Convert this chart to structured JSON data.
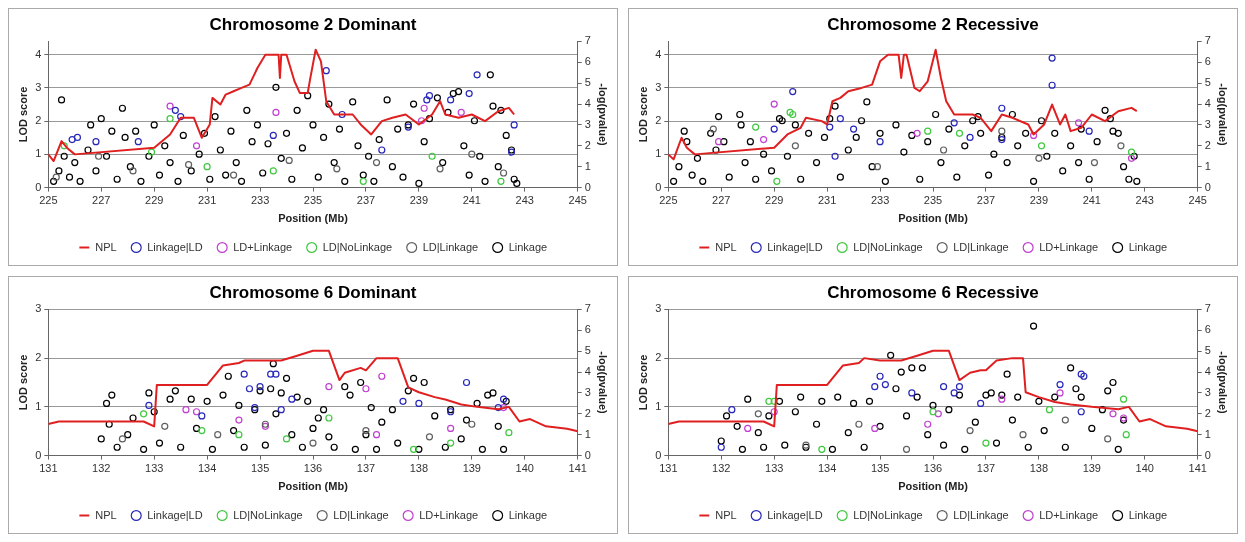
{
  "chart_data": [
    {
      "type": "scatter",
      "title": "Chromosome 2 Dominant",
      "xlabel": "Position (Mb)",
      "ylabel": "LOD score",
      "y2label": "-log(pvalue)",
      "xlim": [
        225,
        245
      ],
      "xticks": [
        225,
        227,
        229,
        231,
        233,
        235,
        237,
        239,
        241,
        243,
        245
      ],
      "ylim": [
        0,
        4.4
      ],
      "yticks": [
        0,
        1,
        2,
        3,
        4
      ],
      "y2lim": [
        0,
        7
      ],
      "y2ticks": [
        0,
        1,
        2,
        3,
        4,
        5,
        6,
        7
      ],
      "grid": "y",
      "legend": "bottom",
      "marker": "circle",
      "series": [
        {
          "name": "NPL",
          "type": "line",
          "marker": "none",
          "color": "#e02020",
          "x": [
            225,
            225.2,
            225.5,
            225.7,
            226,
            229,
            229.6,
            230,
            230.5,
            230.8,
            231.1,
            231.2,
            231.5,
            231.7,
            232,
            232.3,
            232.6,
            232.9,
            233.2,
            233.7,
            233.75,
            233.8,
            234,
            234.3,
            234.5,
            234.8,
            234.9,
            235.1,
            235.3,
            235.5,
            235.8,
            236.5,
            236.8,
            237.2,
            237.6,
            238,
            238.5,
            239,
            239.5,
            239.8,
            240,
            240.5,
            241,
            241.5,
            242,
            242.4,
            242.6
          ],
          "values": [
            1.0,
            0.8,
            1.4,
            1.2,
            1.0,
            1.2,
            1.6,
            2.1,
            2.1,
            1.5,
            1.9,
            2.7,
            2.5,
            2.8,
            2.9,
            3.0,
            3.1,
            3.6,
            4.0,
            4.0,
            3.3,
            4.0,
            4.0,
            3.2,
            2.85,
            2.85,
            3.3,
            4.15,
            3.8,
            2.6,
            2.2,
            2.2,
            1.9,
            1.6,
            2.0,
            2.1,
            2.2,
            1.9,
            2.2,
            2.6,
            2.2,
            2.1,
            2.2,
            2.0,
            2.3,
            2.4,
            2.2
          ]
        },
        {
          "name": "Linkage|LD",
          "axis": "y2",
          "color": "#2828b8",
          "x": [
            225.9,
            226.1,
            226.8,
            228.4,
            229.8,
            230.0,
            233.5,
            235.5,
            236.1,
            237.6,
            238.6,
            239.3,
            239.4,
            240.2,
            240.9,
            241.2,
            242.6,
            242.5
          ],
          "values": [
            2.3,
            2.4,
            2.2,
            2.2,
            3.7,
            3.4,
            2.5,
            5.6,
            3.5,
            1.8,
            2.9,
            4.2,
            4.4,
            4.2,
            4.5,
            5.4,
            3.0,
            1.7
          ]
        },
        {
          "name": "LD+Linkage",
          "axis": "y2",
          "color": "#c040d0",
          "x": [
            229.6,
            233.6,
            239.1,
            239.2,
            240.6,
            230.6
          ],
          "values": [
            3.9,
            3.6,
            3.2,
            3.8,
            3.6,
            2.0
          ]
        },
        {
          "name": "LD|NoLinkage",
          "axis": "y2",
          "color": "#40c840",
          "x": [
            225.6,
            228.9,
            229.6,
            231.0,
            236.9,
            239.5,
            242.1,
            233.5
          ],
          "values": [
            2.0,
            1.7,
            3.3,
            1.0,
            0.3,
            1.5,
            0.3,
            0.8
          ]
        },
        {
          "name": "LD|Linkage",
          "axis": "y2",
          "color": "#606060",
          "x": [
            225.3,
            226.9,
            228.2,
            230.3,
            232.0,
            234.1,
            235.9,
            237.4,
            239.8,
            241.0,
            242.2
          ],
          "values": [
            0.5,
            1.5,
            0.8,
            1.1,
            0.6,
            1.3,
            0.9,
            1.2,
            0.9,
            1.6,
            0.7
          ]
        },
        {
          "name": "Linkage",
          "axis": "y2",
          "color": "#000000",
          "x": [
            225.2,
            225.4,
            225.5,
            225.6,
            225.8,
            226.0,
            226.2,
            226.5,
            226.6,
            226.8,
            227.0,
            227.2,
            227.4,
            227.6,
            227.8,
            227.9,
            228.1,
            228.3,
            228.5,
            228.8,
            229.0,
            229.2,
            229.4,
            229.6,
            229.9,
            230.1,
            230.4,
            230.7,
            230.9,
            231.1,
            231.3,
            231.5,
            231.7,
            231.9,
            232.1,
            232.3,
            232.5,
            232.7,
            232.9,
            233.1,
            233.3,
            233.6,
            233.8,
            234.0,
            234.2,
            234.4,
            234.6,
            234.8,
            235.0,
            235.2,
            235.4,
            235.6,
            235.8,
            236.0,
            236.2,
            236.5,
            236.7,
            236.9,
            237.1,
            237.3,
            237.5,
            237.8,
            238.0,
            238.2,
            238.4,
            238.6,
            238.8,
            239.0,
            239.2,
            239.4,
            239.7,
            239.9,
            240.1,
            240.3,
            240.5,
            240.7,
            240.9,
            241.1,
            241.3,
            241.5,
            241.7,
            241.8,
            242.0,
            242.1,
            242.3,
            242.5,
            242.6,
            242.7
          ],
          "values": [
            0.3,
            0.8,
            4.2,
            1.5,
            0.5,
            1.2,
            0.3,
            1.8,
            3.0,
            0.8,
            3.3,
            1.5,
            2.7,
            0.4,
            3.8,
            2.4,
            1.0,
            2.7,
            0.3,
            1.5,
            3.0,
            0.6,
            2.0,
            1.2,
            0.3,
            2.5,
            0.8,
            1.6,
            2.6,
            0.4,
            3.4,
            1.8,
            0.6,
            2.7,
            1.2,
            0.3,
            3.7,
            2.2,
            3.0,
            0.7,
            2.1,
            4.8,
            1.4,
            2.6,
            0.4,
            3.7,
            1.9,
            4.4,
            3.0,
            0.5,
            2.4,
            4.0,
            1.2,
            2.8,
            0.3,
            4.1,
            2.0,
            0.6,
            1.5,
            0.3,
            2.3,
            4.2,
            1.0,
            2.8,
            0.5,
            3.0,
            4.0,
            0.2,
            2.2,
            3.3,
            4.3,
            1.2,
            3.6,
            4.5,
            4.6,
            2.0,
            0.6,
            3.2,
            1.5,
            0.3,
            5.4,
            3.9,
            1.0,
            3.7,
            2.5,
            1.8,
            0.4,
            0.2
          ]
        }
      ]
    },
    {
      "type": "scatter",
      "title": "Chromosome 2 Recessive",
      "xlabel": "Position (Mb)",
      "ylabel": "LOD score",
      "y2label": "-log(pvalue)",
      "xlim": [
        225,
        245
      ],
      "xticks": [
        225,
        227,
        229,
        231,
        233,
        235,
        237,
        239,
        241,
        243,
        245
      ],
      "ylim": [
        0,
        4.4
      ],
      "yticks": [
        0,
        1,
        2,
        3,
        4
      ],
      "y2lim": [
        0,
        7
      ],
      "y2ticks": [
        0,
        1,
        2,
        3,
        4,
        5,
        6,
        7
      ],
      "grid": "y",
      "legend": "bottom",
      "marker": "circle",
      "series": [
        {
          "name": "NPL",
          "type": "line",
          "marker": "none",
          "color": "#e02020",
          "x": [
            225,
            225.2,
            225.5,
            225.7,
            226,
            229,
            229.5,
            230,
            230.2,
            230.8,
            231,
            231.2,
            231.5,
            231.8,
            232.3,
            232.7,
            233,
            233.3,
            233.7,
            233.8,
            233.9,
            234,
            234.3,
            234.5,
            234.8,
            235.1,
            235.3,
            235.5,
            235.8,
            236.5,
            236.8,
            237.2,
            237.6,
            238,
            238.6,
            238.8,
            239.2,
            239.5,
            239.8,
            240,
            240.2,
            240.6,
            241,
            241.5,
            242,
            242.5,
            242.7
          ],
          "values": [
            1.0,
            0.85,
            1.5,
            1.2,
            1.0,
            1.2,
            1.6,
            1.8,
            2.1,
            2.0,
            1.9,
            2.6,
            2.7,
            2.9,
            3.0,
            3.1,
            3.8,
            4.0,
            4.0,
            3.3,
            4.0,
            4.0,
            3.0,
            2.9,
            3.2,
            4.15,
            3.3,
            2.6,
            2.2,
            2.2,
            2.1,
            1.7,
            2.2,
            2.1,
            1.9,
            1.6,
            1.9,
            2.5,
            1.9,
            2.2,
            1.7,
            1.8,
            2.2,
            2.0,
            2.3,
            2.4,
            2.3
          ]
        },
        {
          "name": "Linkage|LD",
          "axis": "y2",
          "color": "#2828b8",
          "x": [
            229.0,
            229.7,
            231.1,
            231.5,
            232.0,
            233.0,
            235.8,
            236.4,
            237.6,
            237.6,
            239.5,
            239.5,
            240.9,
            231.3
          ],
          "values": [
            2.8,
            4.6,
            2.9,
            3.3,
            2.8,
            2.2,
            3.1,
            2.4,
            3.8,
            2.3,
            6.2,
            4.9,
            2.7,
            1.5
          ]
        },
        {
          "name": "LD|NoLinkage",
          "axis": "y2",
          "color": "#40c840",
          "x": [
            228.3,
            229.6,
            229.7,
            229.1,
            234.8,
            236.0,
            239.1,
            242.5
          ],
          "values": [
            2.9,
            3.6,
            3.5,
            0.3,
            2.7,
            2.6,
            2.0,
            1.7
          ]
        },
        {
          "name": "LD|Linkage",
          "axis": "y2",
          "color": "#606060",
          "x": [
            226.7,
            229.8,
            232.9,
            235.4,
            237.6,
            239.0,
            241.1,
            242.1
          ],
          "values": [
            2.8,
            2.0,
            1.0,
            1.8,
            2.7,
            1.4,
            1.2,
            2.0
          ]
        },
        {
          "name": "LD+Linkage",
          "axis": "y2",
          "color": "#c040d0",
          "x": [
            229.0,
            226.9,
            228.6,
            234.4,
            238.8,
            240.5,
            242.5
          ],
          "values": [
            4.0,
            2.2,
            2.3,
            2.6,
            2.5,
            3.1,
            1.4
          ]
        },
        {
          "name": "Linkage",
          "axis": "y2",
          "color": "#000000",
          "x": [
            225.2,
            225.4,
            225.6,
            225.7,
            225.9,
            226.1,
            226.3,
            226.6,
            226.8,
            226.9,
            227.1,
            227.3,
            227.7,
            227.75,
            227.9,
            228.1,
            228.3,
            228.6,
            228.9,
            229.2,
            229.3,
            229.5,
            229.8,
            230.0,
            230.3,
            230.6,
            230.9,
            231.1,
            231.3,
            231.5,
            231.8,
            232.1,
            232.3,
            232.5,
            232.7,
            233.0,
            233.2,
            233.6,
            233.9,
            234.2,
            234.5,
            234.8,
            235.1,
            235.3,
            235.6,
            235.9,
            236.2,
            236.5,
            236.7,
            236.8,
            237.1,
            237.3,
            237.6,
            237.8,
            238.0,
            238.2,
            238.5,
            238.8,
            239.1,
            239.3,
            239.6,
            239.9,
            240.2,
            240.5,
            240.6,
            240.9,
            241.2,
            241.5,
            241.7,
            241.8,
            242.0,
            242.2,
            242.4,
            242.6,
            242.7
          ],
          "values": [
            0.3,
            1.0,
            2.7,
            2.2,
            0.6,
            1.4,
            0.3,
            2.6,
            1.8,
            3.4,
            2.2,
            0.5,
            3.5,
            3.0,
            1.2,
            2.2,
            0.4,
            1.6,
            0.8,
            3.3,
            3.2,
            1.5,
            3.0,
            0.4,
            2.6,
            1.2,
            2.4,
            3.3,
            3.9,
            0.5,
            1.8,
            2.4,
            3.2,
            4.1,
            1.0,
            2.6,
            0.3,
            3.0,
            1.7,
            2.5,
            0.4,
            2.2,
            3.5,
            1.2,
            2.8,
            0.5,
            2.0,
            3.2,
            3.4,
            2.6,
            0.6,
            1.6,
            2.4,
            1.2,
            3.5,
            2.0,
            2.6,
            0.3,
            3.2,
            1.5,
            2.6,
            0.8,
            2.0,
            1.2,
            2.8,
            0.4,
            2.2,
            3.7,
            3.3,
            2.7,
            2.6,
            1.0,
            0.4,
            1.5,
            0.3
          ]
        }
      ]
    },
    {
      "type": "scatter",
      "title": "Chromosome 6 Dominant",
      "xlabel": "Position (Mb)",
      "ylabel": "LOD score",
      "y2label": "-log(pvalue)",
      "xlim": [
        131,
        141
      ],
      "xticks": [
        131,
        132,
        133,
        134,
        135,
        136,
        137,
        138,
        139,
        140,
        141
      ],
      "ylim": [
        0,
        3
      ],
      "yticks": [
        0,
        1,
        2,
        3
      ],
      "y2lim": [
        0,
        7
      ],
      "y2ticks": [
        0,
        1,
        2,
        3,
        4,
        5,
        6,
        7
      ],
      "grid": "y",
      "legend": "bottom",
      "marker": "circle",
      "series": [
        {
          "name": "NPL",
          "type": "line",
          "marker": "none",
          "color": "#e02020",
          "x": [
            131,
            131.2,
            132.8,
            133,
            133.05,
            134,
            134.3,
            134.6,
            134.7,
            135,
            135.4,
            135.7,
            136,
            136.3,
            136.5,
            136.6,
            136.9,
            137,
            137.2,
            137.6,
            137.8,
            138,
            138.3,
            138.5,
            138.8,
            139.1,
            139.5,
            139.7,
            139.9,
            140.1,
            140.4,
            140.8,
            141
          ],
          "values": [
            0.65,
            0.7,
            0.7,
            0.6,
            1.45,
            1.45,
            1.85,
            1.9,
            1.95,
            1.95,
            1.95,
            2.05,
            2.15,
            2.15,
            1.55,
            1.7,
            1.8,
            1.75,
            2.0,
            2.0,
            1.4,
            1.3,
            1.2,
            1.15,
            1.05,
            1.0,
            0.95,
            1.0,
            0.7,
            0.75,
            0.6,
            0.55,
            0.5
          ]
        },
        {
          "name": "Linkage|LD",
          "axis": "y2",
          "color": "#2828b8",
          "x": [
            132.9,
            133.9,
            134.7,
            134.8,
            134.9,
            135.0,
            135.2,
            135.3,
            135.4,
            135.6,
            137.7,
            138.0,
            138.6,
            138.9,
            139.6,
            139.5
          ],
          "values": [
            2.4,
            1.9,
            3.9,
            3.2,
            2.3,
            3.3,
            3.9,
            3.9,
            2.2,
            2.7,
            2.6,
            2.5,
            2.1,
            3.5,
            2.7,
            2.3
          ]
        },
        {
          "name": "LD|NoLinkage",
          "axis": "y2",
          "color": "#40c840",
          "x": [
            132.8,
            133.9,
            134.6,
            135.5,
            136.3,
            137.9,
            139.7,
            138.6
          ],
          "values": [
            2.0,
            1.2,
            1.0,
            0.8,
            1.8,
            0.3,
            1.1,
            0.6
          ]
        },
        {
          "name": "LD|Linkage",
          "axis": "y2",
          "color": "#606060",
          "x": [
            132.4,
            133.2,
            134.2,
            135.1,
            136.0,
            137.0,
            138.2,
            139.0
          ],
          "values": [
            0.8,
            1.4,
            1.0,
            1.5,
            0.6,
            1.2,
            0.9,
            1.5
          ]
        },
        {
          "name": "LD+Linkage",
          "axis": "y2",
          "color": "#c040d0",
          "x": [
            133.6,
            133.8,
            134.6,
            135.1,
            136.3,
            137.0,
            137.3,
            137.2,
            138.6,
            139.6
          ],
          "values": [
            2.2,
            2.1,
            1.7,
            1.4,
            3.3,
            3.2,
            3.8,
            1.0,
            1.3,
            2.3
          ]
        },
        {
          "name": "Linkage",
          "axis": "y2",
          "color": "#000000",
          "x": [
            132.0,
            132.1,
            132.15,
            132.2,
            132.3,
            132.5,
            132.6,
            132.8,
            132.9,
            133.0,
            133.1,
            133.3,
            133.4,
            133.5,
            133.7,
            133.8,
            134.0,
            134.1,
            134.3,
            134.4,
            134.5,
            134.6,
            134.7,
            134.9,
            135.0,
            135.1,
            135.2,
            135.25,
            135.3,
            135.4,
            135.5,
            135.6,
            135.7,
            135.8,
            135.9,
            136.0,
            136.1,
            136.2,
            136.3,
            136.4,
            136.6,
            136.7,
            136.8,
            136.9,
            137.0,
            137.1,
            137.2,
            137.3,
            137.5,
            137.6,
            137.8,
            137.9,
            138.0,
            138.1,
            138.3,
            138.5,
            138.6,
            138.8,
            138.9,
            139.1,
            139.2,
            139.3,
            139.4,
            139.5,
            139.6,
            139.65
          ],
          "values": [
            0.8,
            2.5,
            1.5,
            2.9,
            0.4,
            1.0,
            1.8,
            0.3,
            3.0,
            2.1,
            0.6,
            2.7,
            3.1,
            0.4,
            2.7,
            1.3,
            2.6,
            0.3,
            2.9,
            3.8,
            1.2,
            2.4,
            0.4,
            2.2,
            3.1,
            0.5,
            3.2,
            4.4,
            2.0,
            3.0,
            3.7,
            1.0,
            2.8,
            0.4,
            2.6,
            1.3,
            1.8,
            2.2,
            0.9,
            0.4,
            3.3,
            2.9,
            0.3,
            3.5,
            1.0,
            2.3,
            0.3,
            1.6,
            2.2,
            0.6,
            3.1,
            3.7,
            0.3,
            3.5,
            1.9,
            0.4,
            2.2,
            0.8,
            1.7,
            2.5,
            0.3,
            2.9,
            3.0,
            1.4,
            0.3,
            2.6
          ]
        }
      ]
    },
    {
      "type": "scatter",
      "title": "Chromosome 6 Recessive",
      "xlabel": "Position (Mb)",
      "ylabel": "LOD score",
      "y2label": "-log(pvalue)",
      "xlim": [
        131,
        141
      ],
      "xticks": [
        131,
        132,
        133,
        134,
        135,
        136,
        137,
        138,
        139,
        140,
        141
      ],
      "ylim": [
        0,
        3
      ],
      "yticks": [
        0,
        1,
        2,
        3
      ],
      "y2lim": [
        0,
        7
      ],
      "y2ticks": [
        0,
        1,
        2,
        3,
        4,
        5,
        6,
        7
      ],
      "grid": "y",
      "legend": "bottom",
      "marker": "circle",
      "series": [
        {
          "name": "NPL",
          "type": "line",
          "marker": "none",
          "color": "#e02020",
          "x": [
            131,
            131.2,
            132.8,
            133,
            133.05,
            134,
            134.3,
            134.6,
            134.7,
            135,
            135.4,
            135.7,
            136,
            136.3,
            136.5,
            136.7,
            136.9,
            137,
            137.2,
            137.5,
            137.7,
            137.75,
            138,
            138.3,
            138.6,
            139,
            139.5,
            139.7,
            139.9,
            140.1,
            140.4,
            140.8,
            141
          ],
          "values": [
            0.65,
            0.7,
            0.7,
            0.6,
            1.45,
            1.45,
            1.85,
            1.9,
            2.0,
            1.95,
            1.95,
            2.05,
            2.15,
            2.15,
            1.55,
            1.7,
            1.75,
            1.75,
            1.95,
            2.0,
            2.0,
            1.3,
            1.2,
            1.1,
            1.05,
            1.0,
            0.95,
            1.0,
            0.7,
            0.75,
            0.6,
            0.55,
            0.5
          ]
        },
        {
          "name": "Linkage|LD",
          "axis": "y2",
          "color": "#2828b8",
          "x": [
            132.0,
            132.2,
            134.9,
            135.0,
            135.1,
            135.6,
            136.2,
            136.4,
            136.5,
            136.9,
            138.4,
            138.8,
            138.85,
            138.8
          ],
          "values": [
            0.4,
            2.2,
            3.3,
            3.8,
            3.4,
            3.0,
            3.3,
            3.0,
            3.3,
            2.5,
            3.4,
            3.9,
            3.8,
            2.1
          ]
        },
        {
          "name": "LD|NoLinkage",
          "axis": "y2",
          "color": "#40c840",
          "x": [
            132.9,
            133.0,
            133.9,
            136.0,
            137.0,
            138.2,
            139.6,
            139.65
          ],
          "values": [
            2.6,
            2.6,
            0.3,
            2.1,
            0.6,
            2.2,
            2.7,
            1.0
          ]
        },
        {
          "name": "LD|Linkage",
          "axis": "y2",
          "color": "#606060",
          "x": [
            132.7,
            133.6,
            134.6,
            135.5,
            136.7,
            137.7,
            138.5,
            139.3
          ],
          "values": [
            2.0,
            0.5,
            1.5,
            0.3,
            1.2,
            1.0,
            1.7,
            0.8
          ]
        },
        {
          "name": "LD+Linkage",
          "axis": "y2",
          "color": "#c040d0",
          "x": [
            132.5,
            133.0,
            134.9,
            135.9,
            136.1,
            137.3,
            138.4,
            139.4,
            139.6
          ],
          "values": [
            1.3,
            2.1,
            1.3,
            1.5,
            2.0,
            2.7,
            3.0,
            2.0,
            1.8
          ]
        },
        {
          "name": "Linkage",
          "axis": "y2",
          "color": "#000000",
          "x": [
            132.0,
            132.1,
            132.3,
            132.4,
            132.5,
            132.7,
            132.8,
            132.9,
            133.1,
            133.2,
            133.4,
            133.5,
            133.6,
            133.8,
            133.9,
            134.1,
            134.2,
            134.4,
            134.5,
            134.7,
            134.8,
            135.0,
            135.2,
            135.3,
            135.4,
            135.5,
            135.6,
            135.7,
            135.8,
            135.9,
            136.0,
            136.2,
            136.3,
            136.5,
            136.6,
            136.8,
            137.0,
            137.1,
            137.2,
            137.3,
            137.4,
            137.5,
            137.6,
            137.8,
            137.9,
            138.0,
            138.1,
            138.3,
            138.5,
            138.6,
            138.7,
            138.8,
            139.0,
            139.2,
            139.3,
            139.4,
            139.5,
            139.6
          ],
          "values": [
            0.7,
            1.9,
            1.4,
            0.3,
            2.7,
            1.1,
            0.4,
            1.9,
            2.6,
            0.5,
            2.1,
            2.8,
            0.4,
            1.5,
            2.6,
            0.3,
            2.8,
            1.1,
            2.5,
            0.4,
            2.6,
            1.4,
            4.8,
            3.2,
            4.0,
            1.9,
            4.2,
            2.8,
            4.2,
            1.0,
            2.4,
            0.5,
            2.2,
            2.9,
            0.3,
            1.6,
            2.9,
            3.0,
            0.6,
            2.9,
            3.9,
            1.7,
            2.8,
            0.4,
            6.2,
            2.6,
            1.2,
            2.8,
            0.4,
            4.2,
            3.2,
            2.8,
            1.3,
            2.2,
            3.1,
            3.5,
            0.3,
            1.7
          ]
        }
      ]
    }
  ]
}
